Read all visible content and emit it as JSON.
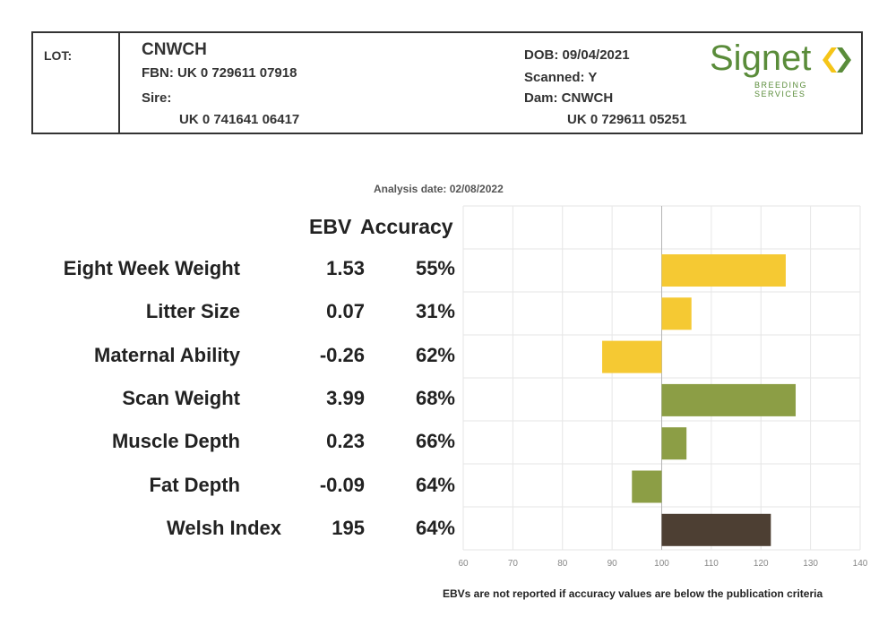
{
  "header": {
    "lot_label": "LOT:",
    "name": "CNWCH",
    "fbn": "FBN: UK 0 729611 07918",
    "sire_label": "Sire:",
    "sire_id": "UK 0 741641 06417",
    "dob": "DOB: 09/04/2021",
    "scanned": "Scanned: Y",
    "dam": "Dam: CNWCH",
    "dam_id": "UK 0 729611 05251"
  },
  "logo": {
    "word": "Signet",
    "sub": "BREEDING SERVICES",
    "colors": [
      "#5a8c3a",
      "#f5c518"
    ]
  },
  "analysis_date": "Analysis date: 02/08/2022",
  "columns": {
    "ebv": "EBV",
    "accuracy": "Accuracy"
  },
  "rows": [
    {
      "label": "Eight Week Weight",
      "ebv": "1.53",
      "accuracy": "55%"
    },
    {
      "label": "Litter Size",
      "ebv": "0.07",
      "accuracy": "31%"
    },
    {
      "label": "Maternal Ability",
      "ebv": "-0.26",
      "accuracy": "62%"
    },
    {
      "label": "Scan Weight",
      "ebv": "3.99",
      "accuracy": "68%"
    },
    {
      "label": "Muscle Depth",
      "ebv": "0.23",
      "accuracy": "66%"
    },
    {
      "label": "Fat Depth",
      "ebv": "-0.09",
      "accuracy": "64%"
    },
    {
      "label": "Welsh Index",
      "ebv": "195",
      "accuracy": "64%"
    }
  ],
  "footnote": "EBVs are not reported if accuracy values are below the publication criteria",
  "chart_data": {
    "type": "bar",
    "orientation": "horizontal",
    "categories": [
      "Eight Week Weight",
      "Litter Size",
      "Maternal Ability",
      "Scan Weight",
      "Muscle Depth",
      "Fat Depth",
      "Welsh Index"
    ],
    "baseline": 100,
    "values": [
      125,
      106,
      88,
      127,
      105,
      94,
      122
    ],
    "colors": [
      "#f5c933",
      "#f5c933",
      "#f5c933",
      "#8c9e45",
      "#8c9e45",
      "#8c9e45",
      "#4d3f33"
    ],
    "xlim": [
      60,
      140
    ],
    "xticks": [
      60,
      70,
      80,
      90,
      100,
      110,
      120,
      130,
      140
    ],
    "grid": true
  }
}
